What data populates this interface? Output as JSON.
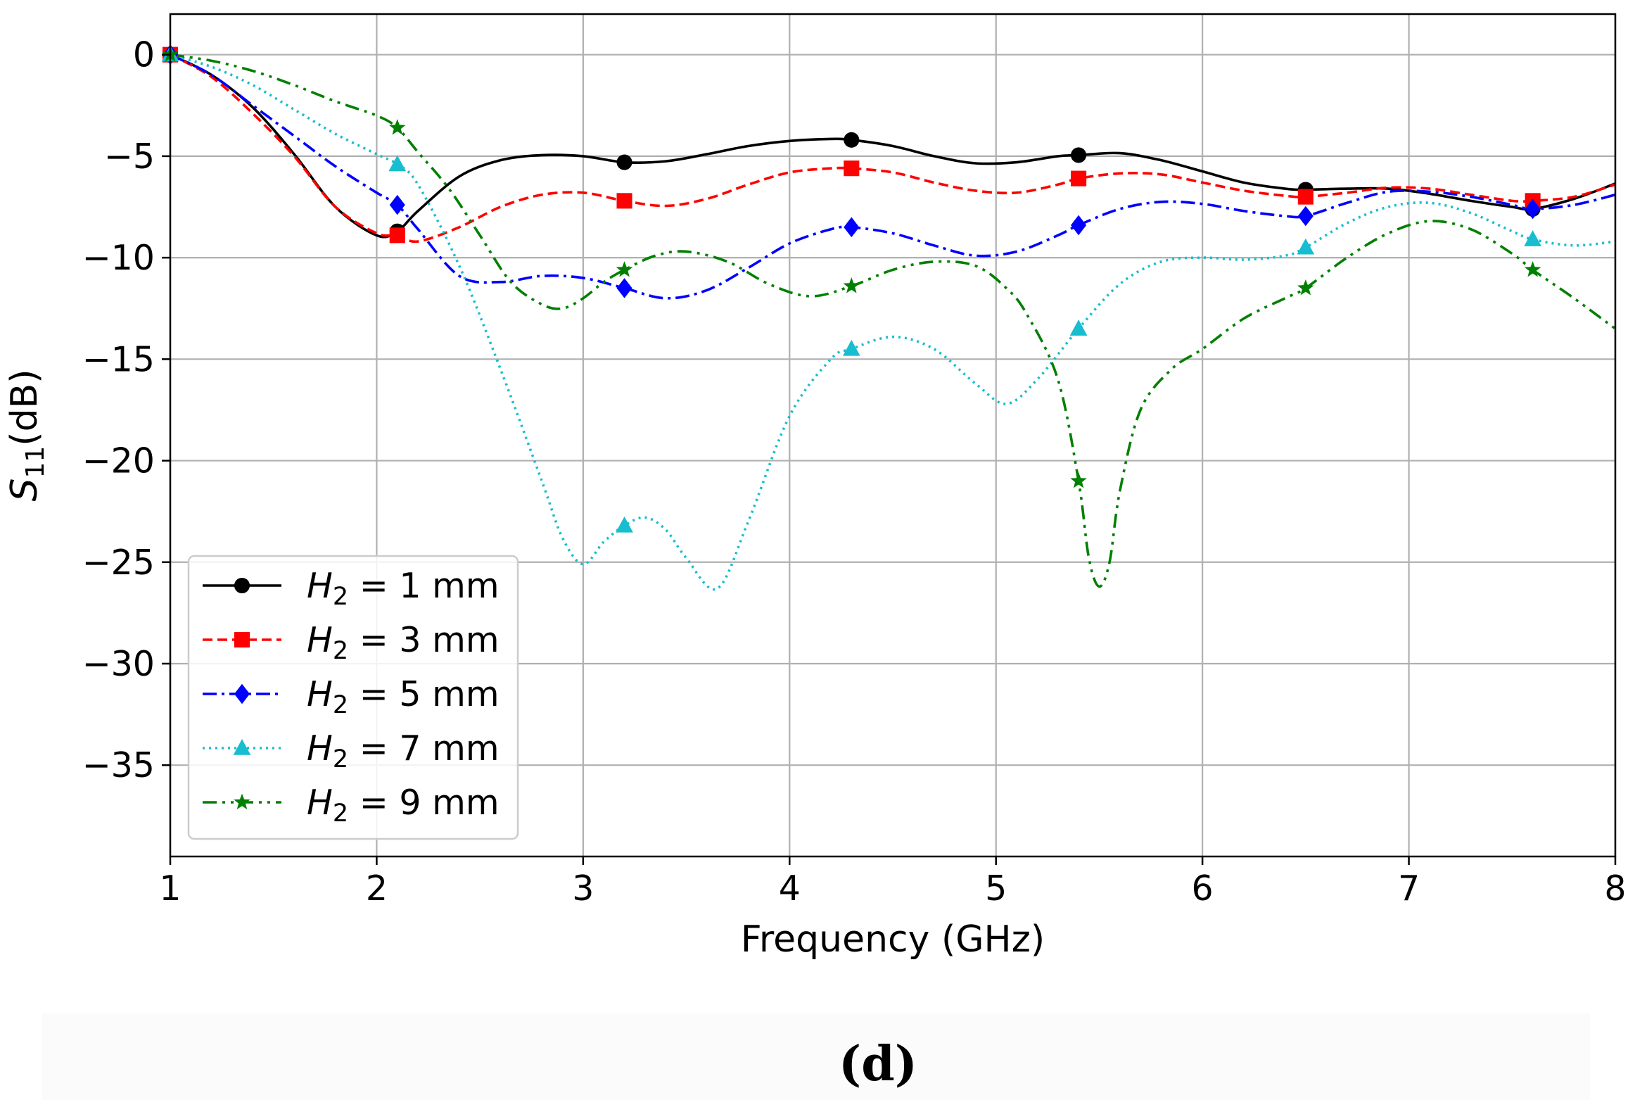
{
  "chart_data": {
    "type": "line",
    "title": "",
    "xlabel": "Frequency (GHz)",
    "ylabel": "S11(dB)",
    "ylabel_main": "S",
    "ylabel_sub": "11",
    "ylabel_rest": "(dB)",
    "xlim": [
      1,
      8
    ],
    "ylim": [
      -39.5,
      2
    ],
    "x_ticks": [
      1,
      2,
      3,
      4,
      5,
      6,
      7,
      8
    ],
    "x_tick_labels": [
      "1",
      "2",
      "3",
      "4",
      "5",
      "6",
      "7",
      "8"
    ],
    "y_ticks": [
      0,
      -5,
      -10,
      -15,
      -20,
      -25,
      -30,
      -35
    ],
    "y_tick_labels": [
      "0",
      "−5",
      "−10",
      "−15",
      "−20",
      "−25",
      "−30",
      "−35"
    ],
    "grid": true,
    "legend_position": "lower-left",
    "panel_label": "(d)",
    "series": [
      {
        "name": "H2 = 1 mm",
        "legend_var": "H",
        "legend_sub": "2",
        "legend_rest": " = 1 mm",
        "color": "#000000",
        "dash": "solid",
        "marker": "circle",
        "markers_x": [
          1.0,
          2.1,
          3.2,
          4.3,
          5.4,
          6.5,
          7.6
        ],
        "x": [
          1.0,
          1.2,
          1.4,
          1.6,
          1.8,
          2.0,
          2.1,
          2.2,
          2.4,
          2.6,
          2.8,
          3.0,
          3.2,
          3.4,
          3.6,
          3.8,
          4.0,
          4.2,
          4.3,
          4.5,
          4.7,
          4.9,
          5.1,
          5.3,
          5.4,
          5.6,
          5.8,
          6.0,
          6.2,
          6.4,
          6.5,
          6.7,
          6.9,
          7.1,
          7.3,
          7.5,
          7.6,
          7.8,
          8.0
        ],
        "y": [
          0,
          -1.0,
          -2.6,
          -4.9,
          -7.5,
          -8.9,
          -8.7,
          -7.7,
          -6.0,
          -5.2,
          -4.95,
          -5.0,
          -5.3,
          -5.25,
          -4.9,
          -4.5,
          -4.25,
          -4.15,
          -4.2,
          -4.5,
          -5.0,
          -5.35,
          -5.3,
          -5.0,
          -4.95,
          -4.85,
          -5.2,
          -5.75,
          -6.3,
          -6.6,
          -6.65,
          -6.6,
          -6.6,
          -6.85,
          -7.2,
          -7.5,
          -7.6,
          -7.1,
          -6.35
        ]
      },
      {
        "name": "H2 = 3 mm",
        "legend_var": "H",
        "legend_sub": "2",
        "legend_rest": " = 3 mm",
        "color": "#ff0000",
        "dash": "dashed",
        "marker": "square",
        "markers_x": [
          1.0,
          2.1,
          3.2,
          4.3,
          5.4,
          6.5,
          7.6
        ],
        "x": [
          1.0,
          1.2,
          1.4,
          1.6,
          1.8,
          2.0,
          2.1,
          2.2,
          2.4,
          2.6,
          2.8,
          3.0,
          3.2,
          3.4,
          3.6,
          3.8,
          4.0,
          4.2,
          4.3,
          4.5,
          4.7,
          4.9,
          5.1,
          5.3,
          5.4,
          5.6,
          5.8,
          6.0,
          6.2,
          6.4,
          6.5,
          6.7,
          6.9,
          7.1,
          7.3,
          7.5,
          7.6,
          7.8,
          8.0
        ],
        "y": [
          0,
          -1.1,
          -2.9,
          -5.0,
          -7.5,
          -8.8,
          -8.9,
          -9.2,
          -8.5,
          -7.5,
          -6.9,
          -6.8,
          -7.2,
          -7.45,
          -7.1,
          -6.4,
          -5.8,
          -5.6,
          -5.6,
          -5.8,
          -6.3,
          -6.7,
          -6.8,
          -6.4,
          -6.1,
          -5.85,
          -5.9,
          -6.3,
          -6.7,
          -6.95,
          -7.0,
          -6.8,
          -6.55,
          -6.6,
          -6.9,
          -7.2,
          -7.2,
          -7.0,
          -6.4
        ]
      },
      {
        "name": "H2 = 5 mm",
        "legend_var": "H",
        "legend_sub": "2",
        "legend_rest": " = 5 mm",
        "color": "#0000ff",
        "dash": "dashdot",
        "marker": "diamond",
        "markers_x": [
          1.0,
          2.1,
          3.2,
          4.3,
          5.4,
          6.5,
          7.6
        ],
        "x": [
          1.0,
          1.2,
          1.4,
          1.6,
          1.8,
          2.0,
          2.1,
          2.2,
          2.4,
          2.6,
          2.8,
          3.0,
          3.2,
          3.4,
          3.6,
          3.8,
          4.0,
          4.2,
          4.3,
          4.5,
          4.7,
          4.9,
          5.1,
          5.3,
          5.4,
          5.6,
          5.8,
          6.0,
          6.2,
          6.4,
          6.5,
          6.7,
          6.9,
          7.1,
          7.3,
          7.5,
          7.6,
          7.8,
          8.0
        ],
        "y": [
          0,
          -1.0,
          -2.5,
          -4.0,
          -5.5,
          -6.8,
          -7.4,
          -8.6,
          -10.9,
          -11.2,
          -10.9,
          -11.0,
          -11.5,
          -12.0,
          -11.6,
          -10.5,
          -9.3,
          -8.6,
          -8.5,
          -8.8,
          -9.4,
          -9.9,
          -9.7,
          -8.9,
          -8.4,
          -7.6,
          -7.25,
          -7.35,
          -7.7,
          -7.95,
          -7.95,
          -7.3,
          -6.75,
          -6.75,
          -7.0,
          -7.4,
          -7.6,
          -7.4,
          -6.9
        ]
      },
      {
        "name": "H2 = 7 mm",
        "legend_var": "H",
        "legend_sub": "2",
        "legend_rest": " = 7 mm",
        "color": "#17becf",
        "dash": "dotted",
        "marker": "triangle",
        "markers_x": [
          1.0,
          2.1,
          3.2,
          4.3,
          5.4,
          6.5,
          7.6
        ],
        "x": [
          1.0,
          1.2,
          1.4,
          1.6,
          1.8,
          2.0,
          2.1,
          2.2,
          2.4,
          2.6,
          2.8,
          2.9,
          3.0,
          3.1,
          3.2,
          3.3,
          3.4,
          3.5,
          3.65,
          3.8,
          4.0,
          4.2,
          4.3,
          4.5,
          4.7,
          4.9,
          5.05,
          5.2,
          5.4,
          5.6,
          5.8,
          6.0,
          6.2,
          6.4,
          6.5,
          6.7,
          6.9,
          7.1,
          7.3,
          7.5,
          7.6,
          7.8,
          8.0
        ],
        "y": [
          0,
          -0.6,
          -1.5,
          -2.7,
          -3.9,
          -4.9,
          -5.4,
          -6.4,
          -10.4,
          -15.5,
          -21.0,
          -23.8,
          -25.1,
          -24.0,
          -23.2,
          -22.8,
          -23.4,
          -24.8,
          -26.3,
          -23.0,
          -17.8,
          -15.0,
          -14.5,
          -13.9,
          -14.5,
          -16.2,
          -17.2,
          -16.0,
          -13.5,
          -11.3,
          -10.2,
          -10.0,
          -10.1,
          -9.9,
          -9.5,
          -8.3,
          -7.5,
          -7.3,
          -7.8,
          -8.7,
          -9.1,
          -9.4,
          -9.2
        ]
      },
      {
        "name": "H2 = 9 mm",
        "legend_var": "H",
        "legend_sub": "2",
        "legend_rest": " = 9 mm",
        "color": "#008000",
        "dash": "dashdotdot",
        "marker": "star",
        "markers_x": [
          1.0,
          2.1,
          3.2,
          4.3,
          5.4,
          6.5,
          7.6
        ],
        "x": [
          1.0,
          1.2,
          1.4,
          1.6,
          1.8,
          2.0,
          2.1,
          2.2,
          2.35,
          2.5,
          2.65,
          2.8,
          2.9,
          3.0,
          3.1,
          3.2,
          3.35,
          3.5,
          3.7,
          3.9,
          4.1,
          4.3,
          4.5,
          4.7,
          4.9,
          5.05,
          5.15,
          5.3,
          5.4,
          5.45,
          5.5,
          5.55,
          5.6,
          5.7,
          5.85,
          6.0,
          6.2,
          6.4,
          6.5,
          6.7,
          6.9,
          7.1,
          7.3,
          7.5,
          7.6,
          7.8,
          8.0
        ],
        "y": [
          0,
          -0.3,
          -0.8,
          -1.5,
          -2.3,
          -3.0,
          -3.6,
          -4.8,
          -6.6,
          -8.9,
          -11.2,
          -12.3,
          -12.5,
          -12.0,
          -11.2,
          -10.6,
          -9.9,
          -9.7,
          -10.2,
          -11.3,
          -11.9,
          -11.4,
          -10.6,
          -10.2,
          -10.4,
          -11.5,
          -12.8,
          -16.0,
          -21.0,
          -24.8,
          -26.2,
          -25.0,
          -21.5,
          -17.5,
          -15.5,
          -14.5,
          -13.0,
          -12.0,
          -11.5,
          -10.0,
          -8.8,
          -8.2,
          -8.6,
          -9.8,
          -10.6,
          -12.0,
          -13.5
        ]
      }
    ]
  }
}
